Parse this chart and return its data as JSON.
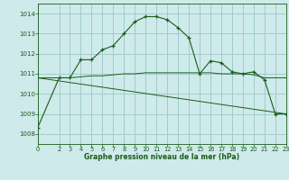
{
  "background_color": "#ceeaea",
  "grid_color": "#a0cccc",
  "line_color": "#1a5c1a",
  "title": "Graphe pression niveau de la mer (hPa)",
  "xlim": [
    0,
    23
  ],
  "ylim": [
    1007.5,
    1014.5
  ],
  "yticks": [
    1008,
    1009,
    1010,
    1011,
    1012,
    1013,
    1014
  ],
  "xticks": [
    0,
    2,
    3,
    4,
    5,
    6,
    7,
    8,
    9,
    10,
    11,
    12,
    13,
    14,
    15,
    16,
    17,
    18,
    19,
    20,
    21,
    22,
    23
  ],
  "line1_x": [
    0,
    2,
    3,
    4,
    5,
    6,
    7,
    8,
    9,
    10,
    11,
    12,
    13,
    14,
    15,
    16,
    17,
    18,
    19,
    20,
    21,
    22,
    23
  ],
  "line1_y": [
    1008.3,
    1010.8,
    1010.8,
    1011.7,
    1011.7,
    1012.2,
    1012.4,
    1013.0,
    1013.6,
    1013.85,
    1013.85,
    1013.7,
    1013.3,
    1012.8,
    1011.0,
    1011.65,
    1011.55,
    1011.1,
    1011.0,
    1011.1,
    1010.7,
    1009.0,
    1009.0
  ],
  "line2_x": [
    0,
    2,
    3,
    4,
    5,
    6,
    7,
    8,
    9,
    10,
    11,
    12,
    13,
    14,
    15,
    16,
    17,
    18,
    19,
    20,
    21,
    22,
    23
  ],
  "line2_y": [
    1010.8,
    1010.8,
    1010.8,
    1010.85,
    1010.9,
    1010.9,
    1010.95,
    1011.0,
    1011.0,
    1011.05,
    1011.05,
    1011.05,
    1011.05,
    1011.05,
    1011.05,
    1011.05,
    1011.0,
    1011.0,
    1011.0,
    1010.95,
    1010.8,
    1010.8,
    1010.8
  ],
  "line3_x": [
    0,
    23
  ],
  "line3_y": [
    1010.8,
    1009.0
  ]
}
